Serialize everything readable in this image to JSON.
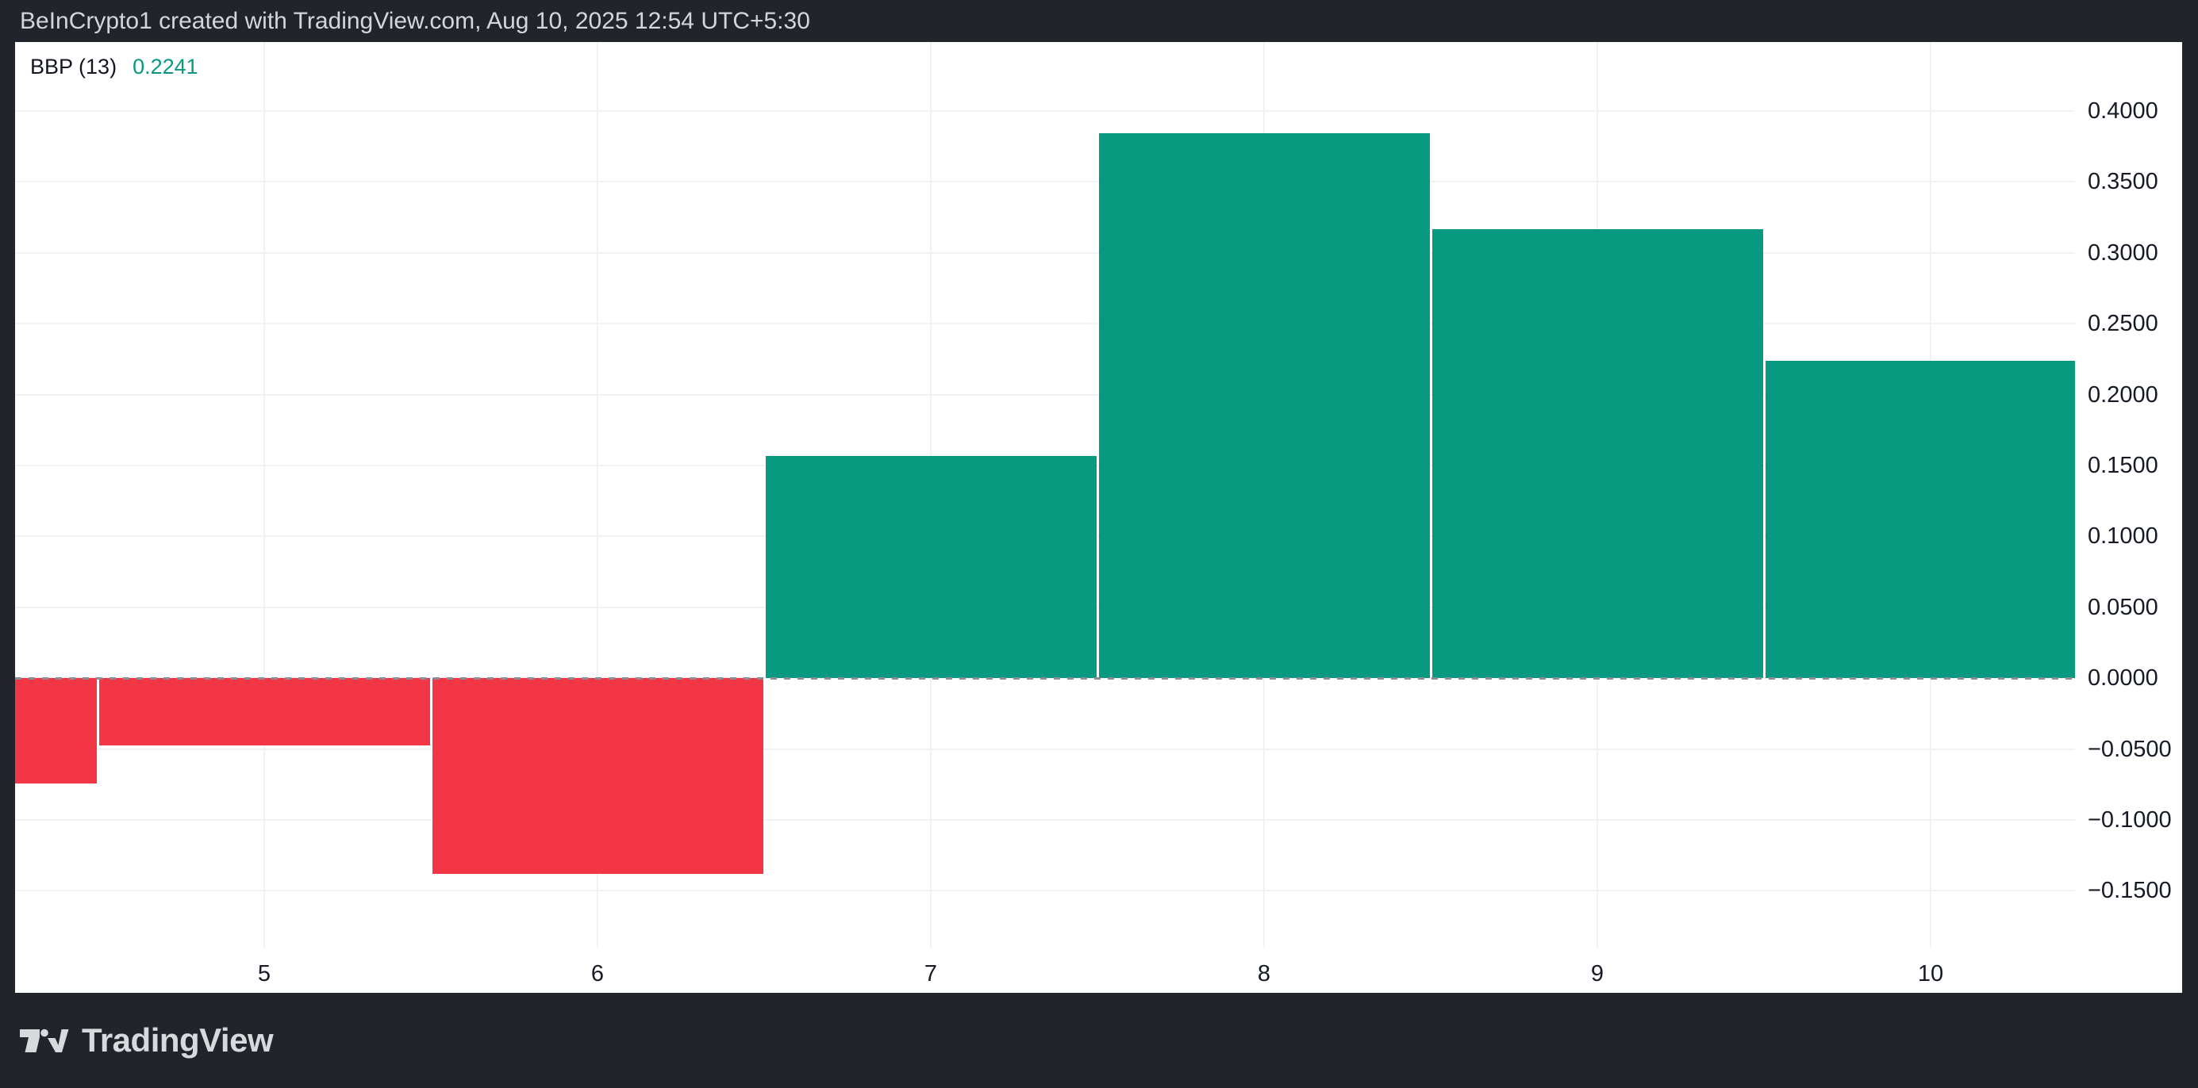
{
  "frame": {
    "header_text": "BeInCrypto1 created with TradingView.com, Aug 10, 2025 12:54 UTC+5:30",
    "footer_brand": "TradingView",
    "colors": {
      "frame_bg": "#21242b",
      "panel_bg": "#ffffff",
      "header_text": "#d3d6dc",
      "grid": "#f0f2f5",
      "zero_line": "#8a8d94",
      "axis_text": "#161a25"
    }
  },
  "indicator": {
    "name": "BBP (13)",
    "value": "0.2241",
    "value_color": "#089981"
  },
  "chart_data": {
    "type": "bar",
    "title": "BBP (13)",
    "categories": [
      4,
      5,
      6,
      7,
      8,
      9,
      10
    ],
    "values": [
      -0.0742,
      -0.0474,
      -0.1379,
      0.1568,
      0.3844,
      0.3167,
      0.2241
    ],
    "x_tick_labels": [
      "",
      "5",
      "6",
      "7",
      "8",
      "9",
      "10"
    ],
    "y_ticks": [
      0.4,
      0.35,
      0.3,
      0.25,
      0.2,
      0.15,
      0.1,
      0.05,
      0,
      -0.05,
      -0.1,
      -0.15
    ],
    "y_tick_labels": [
      "0.4000",
      "0.3500",
      "0.3000",
      "0.2500",
      "0.2000",
      "0.1500",
      "0.1000",
      "0.0500",
      "0.0000",
      "−0.0500",
      "−0.1000",
      "−0.1500"
    ],
    "ylim": [
      -0.19,
      0.4487
    ],
    "grid": true,
    "zero_line": "dashed",
    "legend_position": "top-left",
    "bar_colors": {
      "positive": "#089981",
      "negative": "#f23645"
    }
  }
}
